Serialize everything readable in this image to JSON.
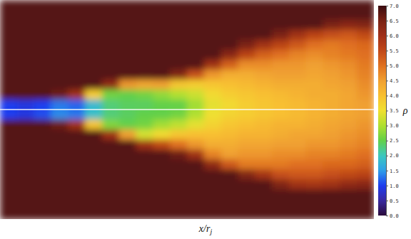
{
  "chart_data": {
    "type": "heatmap",
    "x_label": "x/rj",
    "colorbar_label": "ρ",
    "clim": [
      0,
      7
    ],
    "cticks": [
      {
        "value": 0,
        "label": "0.0"
      },
      {
        "value": 0.5,
        "label": "0.5"
      },
      {
        "value": 1,
        "label": "1.0"
      },
      {
        "value": 1.5,
        "label": "1.5"
      },
      {
        "value": 2,
        "label": "2.0"
      },
      {
        "value": 2.5,
        "label": "2.5"
      },
      {
        "value": 3,
        "label": "3.0"
      },
      {
        "value": 3.5,
        "label": "3.5"
      },
      {
        "value": 4,
        "label": "4.0"
      },
      {
        "value": 4.5,
        "label": "4.5"
      },
      {
        "value": 5,
        "label": "5.0"
      },
      {
        "value": 5.5,
        "label": "5.5"
      },
      {
        "value": 6,
        "label": "6.0"
      },
      {
        "value": 6.5,
        "label": "6.5"
      },
      {
        "value": 7,
        "label": "7.0"
      }
    ],
    "cells": [
      [
        6.8,
        6.8,
        6.8,
        6.8,
        6.8,
        6.8,
        6.8,
        6.8,
        6.8,
        6.8,
        6.8,
        6.8,
        6.8,
        6.8,
        6.8,
        6.8,
        6.8,
        6.8,
        6.8,
        6.8,
        6.8,
        6.8
      ],
      [
        6.8,
        6.8,
        6.8,
        6.8,
        6.8,
        6.8,
        6.8,
        6.8,
        6.8,
        6.8,
        6.8,
        6.8,
        6.8,
        6.8,
        6.8,
        6.8,
        6.8,
        6.8,
        6.8,
        6.8,
        6.8,
        6.8
      ],
      [
        6.8,
        6.8,
        6.8,
        6.8,
        6.8,
        6.8,
        6.8,
        6.8,
        6.8,
        6.8,
        6.8,
        6.8,
        6.8,
        6.8,
        6.8,
        6.8,
        6.8,
        6.8,
        6.8,
        6.5,
        6.3,
        6.4
      ],
      [
        6.8,
        6.8,
        6.8,
        6.8,
        6.8,
        6.8,
        6.8,
        6.8,
        6.8,
        6.8,
        6.8,
        6.8,
        6.8,
        6.8,
        6.8,
        6.8,
        6.5,
        6.0,
        5.6,
        5.4,
        5.3,
        5.5
      ],
      [
        6.8,
        6.8,
        6.8,
        6.8,
        6.8,
        6.8,
        6.8,
        6.8,
        6.8,
        6.8,
        6.8,
        6.8,
        6.8,
        6.8,
        6.5,
        6.0,
        5.6,
        5.3,
        5.0,
        4.9,
        5.0,
        5.1
      ],
      [
        6.8,
        6.8,
        6.8,
        6.8,
        6.8,
        6.8,
        6.8,
        6.8,
        6.8,
        6.8,
        6.8,
        6.8,
        6.8,
        6.3,
        5.6,
        5.2,
        5.0,
        4.8,
        4.7,
        4.8,
        4.9,
        5.0
      ],
      [
        6.8,
        6.8,
        6.8,
        6.8,
        6.8,
        6.8,
        6.8,
        6.8,
        6.8,
        6.8,
        6.8,
        6.8,
        6.0,
        5.2,
        4.7,
        4.7,
        4.6,
        4.6,
        4.5,
        4.6,
        4.7,
        4.9
      ],
      [
        6.8,
        6.8,
        6.8,
        6.8,
        6.8,
        6.8,
        6.8,
        6.8,
        6.8,
        6.8,
        6.4,
        5.4,
        4.6,
        4.3,
        4.3,
        4.4,
        4.5,
        4.5,
        4.4,
        4.5,
        4.6,
        4.8
      ],
      [
        6.8,
        6.8,
        6.8,
        6.8,
        6.8,
        6.8,
        6.2,
        4.6,
        4.4,
        4.5,
        3.9,
        3.8,
        3.9,
        4.0,
        4.1,
        4.2,
        4.3,
        4.3,
        4.3,
        4.4,
        4.5,
        4.7
      ],
      [
        6.8,
        6.8,
        6.8,
        6.6,
        6.0,
        3.8,
        2.6,
        2.5,
        2.6,
        2.8,
        3.0,
        3.2,
        3.6,
        3.8,
        3.9,
        4.0,
        4.1,
        4.2,
        4.3,
        4.3,
        4.4,
        4.6
      ],
      [
        1.0,
        0.9,
        1.0,
        1.3,
        1.2,
        1.8,
        2.3,
        2.4,
        2.4,
        2.5,
        2.5,
        2.9,
        3.4,
        3.6,
        3.8,
        3.9,
        4.0,
        4.1,
        4.2,
        4.3,
        4.4,
        4.5
      ],
      [
        1.0,
        0.9,
        1.1,
        1.4,
        1.3,
        1.9,
        2.3,
        2.4,
        2.5,
        2.5,
        2.6,
        3.0,
        3.5,
        3.7,
        3.8,
        3.9,
        4.0,
        4.1,
        4.2,
        4.3,
        4.4,
        4.5
      ],
      [
        6.8,
        6.8,
        6.8,
        6.6,
        6.0,
        3.9,
        2.7,
        2.5,
        2.6,
        2.9,
        3.1,
        3.4,
        3.7,
        3.9,
        4.0,
        4.1,
        4.2,
        4.2,
        4.3,
        4.4,
        4.5,
        4.6
      ],
      [
        6.8,
        6.8,
        6.8,
        6.8,
        6.8,
        6.8,
        6.0,
        4.5,
        3.3,
        3.6,
        3.9,
        4.0,
        4.0,
        4.1,
        4.2,
        4.2,
        4.3,
        4.4,
        4.4,
        4.5,
        4.6,
        4.7
      ],
      [
        6.8,
        6.8,
        6.8,
        6.8,
        6.8,
        6.8,
        6.8,
        6.8,
        6.0,
        5.5,
        5.0,
        4.6,
        4.3,
        4.3,
        4.4,
        4.4,
        4.5,
        4.5,
        4.6,
        4.6,
        4.7,
        4.8
      ],
      [
        6.8,
        6.8,
        6.8,
        6.8,
        6.8,
        6.8,
        6.8,
        6.8,
        6.8,
        6.8,
        6.6,
        6.0,
        4.8,
        4.5,
        4.6,
        4.6,
        4.7,
        4.7,
        4.8,
        4.8,
        4.9,
        5.0
      ],
      [
        6.8,
        6.8,
        6.8,
        6.8,
        6.8,
        6.8,
        6.8,
        6.8,
        6.8,
        6.8,
        6.8,
        6.8,
        6.2,
        5.3,
        4.9,
        4.9,
        4.9,
        5.0,
        5.0,
        5.1,
        5.1,
        5.2
      ],
      [
        6.8,
        6.8,
        6.8,
        6.8,
        6.8,
        6.8,
        6.8,
        6.8,
        6.8,
        6.8,
        6.8,
        6.8,
        6.8,
        6.8,
        6.4,
        5.9,
        5.4,
        5.3,
        5.3,
        5.4,
        5.5,
        5.6
      ],
      [
        6.8,
        6.8,
        6.8,
        6.8,
        6.8,
        6.8,
        6.8,
        6.8,
        6.8,
        6.8,
        6.8,
        6.8,
        6.8,
        6.8,
        6.8,
        6.8,
        6.4,
        6.0,
        5.9,
        6.0,
        6.2,
        6.3
      ],
      [
        6.8,
        6.8,
        6.8,
        6.8,
        6.8,
        6.8,
        6.8,
        6.8,
        6.8,
        6.8,
        6.8,
        6.8,
        6.8,
        6.8,
        6.8,
        6.8,
        6.8,
        6.8,
        6.8,
        6.8,
        6.8,
        6.8
      ],
      [
        6.8,
        6.8,
        6.8,
        6.8,
        6.8,
        6.8,
        6.8,
        6.8,
        6.8,
        6.8,
        6.8,
        6.8,
        6.8,
        6.8,
        6.8,
        6.8,
        6.8,
        6.8,
        6.8,
        6.8,
        6.8,
        6.8
      ],
      [
        6.8,
        6.8,
        6.8,
        6.8,
        6.8,
        6.8,
        6.8,
        6.8,
        6.8,
        6.8,
        6.8,
        6.8,
        6.8,
        6.8,
        6.8,
        6.8,
        6.8,
        6.8,
        6.8,
        6.8,
        6.8,
        6.8
      ]
    ]
  }
}
